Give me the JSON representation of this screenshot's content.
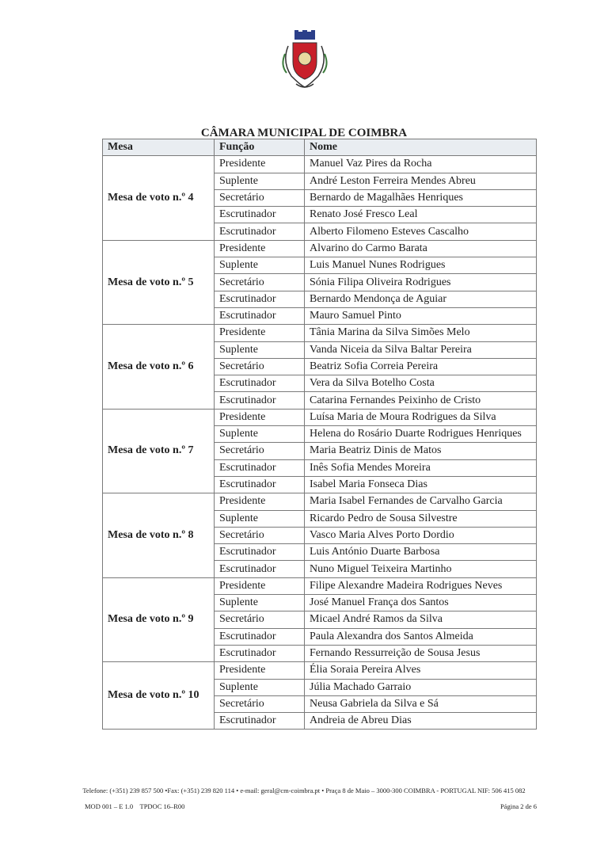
{
  "header": {
    "title": "CÂMARA MUNICIPAL DE COIMBRA",
    "logo": "Coimbra municipal coat of arms"
  },
  "table": {
    "columns": [
      "Mesa",
      "Função",
      "Nome"
    ],
    "groups": [
      {
        "mesa": "Mesa de voto n.º 4",
        "rows": [
          [
            "Presidente",
            "Manuel Vaz Pires da Rocha"
          ],
          [
            "Suplente",
            "André Leston Ferreira Mendes Abreu"
          ],
          [
            "Secretário",
            "Bernardo de Magalhães Henriques"
          ],
          [
            "Escrutinador",
            "Renato José Fresco Leal"
          ],
          [
            "Escrutinador",
            "Alberto Filomeno Esteves Cascalho"
          ]
        ]
      },
      {
        "mesa": "Mesa de voto n.º 5",
        "rows": [
          [
            "Presidente",
            "Alvarino do Carmo Barata"
          ],
          [
            "Suplente",
            "Luis Manuel Nunes Rodrigues"
          ],
          [
            "Secretário",
            "Sónia Filipa Oliveira Rodrigues"
          ],
          [
            "Escrutinador",
            "Bernardo Mendonça de Aguiar"
          ],
          [
            "Escrutinador",
            "Mauro Samuel Pinto"
          ]
        ]
      },
      {
        "mesa": "Mesa de voto n.º 6",
        "rows": [
          [
            "Presidente",
            "Tânia Marina da Silva Simões Melo"
          ],
          [
            "Suplente",
            "Vanda Niceia da Silva Baltar Pereira"
          ],
          [
            "Secretário",
            "Beatriz Sofia Correia Pereira"
          ],
          [
            "Escrutinador",
            "Vera da Silva Botelho Costa"
          ],
          [
            "Escrutinador",
            "Catarina Fernandes Peixinho de Cristo"
          ]
        ]
      },
      {
        "mesa": "Mesa de voto n.º 7",
        "rows": [
          [
            "Presidente",
            "Luísa Maria de Moura Rodrigues da Silva"
          ],
          [
            "Suplente",
            "Helena do Rosário Duarte Rodrigues Henriques"
          ],
          [
            "Secretário",
            "Maria Beatriz Dinis de Matos"
          ],
          [
            "Escrutinador",
            "Inês Sofia Mendes Moreira"
          ],
          [
            "Escrutinador",
            "Isabel Maria Fonseca Dias"
          ]
        ]
      },
      {
        "mesa": "Mesa de voto n.º 8",
        "rows": [
          [
            "Presidente",
            "Maria Isabel Fernandes de Carvalho Garcia"
          ],
          [
            "Suplente",
            "Ricardo Pedro de Sousa Silvestre"
          ],
          [
            "Secretário",
            "Vasco Maria Alves Porto Dordio"
          ],
          [
            "Escrutinador",
            "Luis António Duarte Barbosa"
          ],
          [
            "Escrutinador",
            "Nuno Miguel Teixeira Martinho"
          ]
        ]
      },
      {
        "mesa": "Mesa de voto n.º 9",
        "rows": [
          [
            "Presidente",
            "Filipe Alexandre Madeira Rodrigues Neves"
          ],
          [
            "Suplente",
            "José Manuel França dos Santos"
          ],
          [
            "Secretário",
            "Micael André Ramos da Silva"
          ],
          [
            "Escrutinador",
            "Paula Alexandra dos Santos Almeida"
          ],
          [
            "Escrutinador",
            "Fernando Ressurreição de Sousa Jesus"
          ]
        ]
      },
      {
        "mesa": "Mesa de voto n.º 10",
        "rows": [
          [
            "Presidente",
            "Élia Soraia Pereira Alves"
          ],
          [
            "Suplente",
            "Júlia Machado Garraio"
          ],
          [
            "Secretário",
            "Neusa Gabriela da Silva e Sá"
          ],
          [
            "Escrutinador",
            "Andreia de Abreu Dias"
          ]
        ]
      }
    ]
  },
  "footer": {
    "contact": "Telefone: (+351) 239 857 500 •Fax: (+351) 239 820 114 • e-mail: geral@cm-coimbra.pt • Praça 8 de Maio – 3000-300 COIMBRA - PORTUGAL NIF: 506 415 082",
    "doc_code": "MOD 001 – E 1.0    TPDOC 16–R00",
    "page": "Página 2 de 6"
  }
}
